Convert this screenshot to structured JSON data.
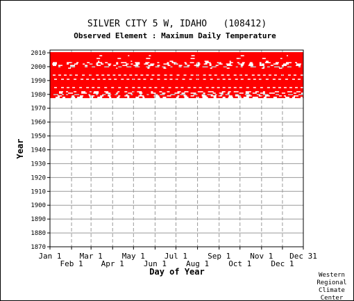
{
  "chart_data": {
    "type": "heatmap",
    "title": "SILVER CITY 5 W, IDAHO   (108412)",
    "subtitle": "Observed Element : Maximum Daily Temperature",
    "xlabel": "Day of Year",
    "ylabel": "Year",
    "xlim": [
      1,
      365
    ],
    "ylim": [
      1870,
      2012
    ],
    "grid": true,
    "data_color": "#ff0000",
    "y_ticks": [
      1870,
      1880,
      1890,
      1900,
      1910,
      1920,
      1930,
      1940,
      1950,
      1960,
      1970,
      1980,
      1990,
      2000,
      2010
    ],
    "x_ticks_top": [
      {
        "label": "Jan 1",
        "day": 1
      },
      {
        "label": "Mar 1",
        "day": 60
      },
      {
        "label": "May 1",
        "day": 121
      },
      {
        "label": "Jul 1",
        "day": 182
      },
      {
        "label": "Sep 1",
        "day": 244
      },
      {
        "label": "Nov 1",
        "day": 305
      },
      {
        "label": "Dec 31",
        "day": 365
      }
    ],
    "x_ticks_bottom": [
      {
        "label": "Feb 1",
        "day": 32
      },
      {
        "label": "Apr 1",
        "day": 91
      },
      {
        "label": "Jun 1",
        "day": 152
      },
      {
        "label": "Aug 1",
        "day": 213
      },
      {
        "label": "Oct 1",
        "day": 274
      },
      {
        "label": "Dec 1",
        "day": 335
      }
    ],
    "record_year_range": [
      1978,
      2010
    ],
    "sparse_years": [
      1978,
      1979,
      1980,
      1981,
      1982,
      2000,
      2001,
      2002,
      2003
    ],
    "dotted_years": [
      1985,
      1991,
      1994
    ],
    "full_years": [
      2010,
      2009,
      2007,
      2005,
      1998,
      1997,
      1996,
      1995,
      1993,
      1992,
      1990,
      1989,
      1988,
      1987,
      1986,
      1984,
      1983
    ]
  },
  "credit": [
    "Western",
    "Regional",
    "Climate",
    "Center"
  ]
}
